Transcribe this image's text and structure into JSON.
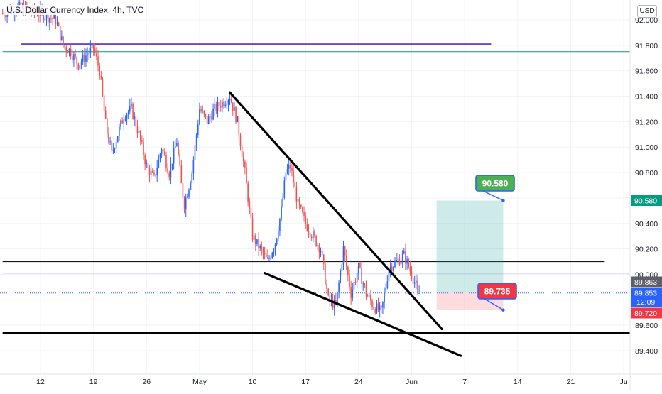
{
  "header": {
    "title": "U.S. Dollar Currency Index, 4h, TVC",
    "currency": "USD"
  },
  "chart_data": {
    "type": "candlestick",
    "title": "U.S. Dollar Currency Index, 4h, TVC",
    "ylim": [
      89.3,
      92.1
    ],
    "y_ticks": [
      "92.000",
      "91.800",
      "91.600",
      "91.400",
      "91.200",
      "91.000",
      "90.800",
      "90.600",
      "90.400",
      "90.200",
      "90.000",
      "89.800",
      "89.600",
      "89.400"
    ],
    "x_ticks": [
      {
        "label": "12",
        "x": 5
      },
      {
        "label": "19",
        "x": 12
      },
      {
        "label": "26",
        "x": 19
      },
      {
        "label": "May",
        "x": 26
      },
      {
        "label": "10",
        "x": 33
      },
      {
        "label": "17",
        "x": 40
      },
      {
        "label": "24",
        "x": 47
      },
      {
        "label": "Jun",
        "x": 54
      },
      {
        "label": "7",
        "x": 61
      },
      {
        "label": "14",
        "x": 68
      },
      {
        "label": "21",
        "x": 75
      },
      {
        "label": "Ju",
        "x": 82
      }
    ],
    "xlim": [
      0,
      85.5
    ],
    "candle_x_step": 0.2,
    "candle_anchors": [
      [
        0,
        92.05
      ],
      [
        2,
        92.1
      ],
      [
        5,
        92.05
      ],
      [
        7,
        92.0
      ],
      [
        8,
        91.8
      ],
      [
        9,
        91.75
      ],
      [
        10,
        91.65
      ],
      [
        11,
        91.72
      ],
      [
        12,
        91.78
      ],
      [
        12.8,
        91.6
      ],
      [
        13.6,
        91.18
      ],
      [
        14.4,
        90.95
      ],
      [
        15.2,
        91.1
      ],
      [
        16,
        91.25
      ],
      [
        17,
        91.3
      ],
      [
        18,
        91.1
      ],
      [
        19,
        90.85
      ],
      [
        20,
        90.75
      ],
      [
        21,
        91.0
      ],
      [
        22,
        90.8
      ],
      [
        23,
        91.05
      ],
      [
        23.6,
        90.7
      ],
      [
        24,
        90.55
      ],
      [
        25,
        90.8
      ],
      [
        26,
        91.3
      ],
      [
        27,
        91.2
      ],
      [
        28,
        91.3
      ],
      [
        29,
        91.35
      ],
      [
        30,
        91.4
      ],
      [
        31,
        91.2
      ],
      [
        32,
        90.8
      ],
      [
        33,
        90.3
      ],
      [
        34,
        90.2
      ],
      [
        35,
        90.1
      ],
      [
        36,
        90.25
      ],
      [
        36.8,
        90.5
      ],
      [
        37.4,
        90.8
      ],
      [
        38,
        90.85
      ],
      [
        39,
        90.55
      ],
      [
        40,
        90.4
      ],
      [
        41,
        90.3
      ],
      [
        42,
        90.2
      ],
      [
        43,
        89.8
      ],
      [
        44,
        89.75
      ],
      [
        45,
        90.2
      ],
      [
        46,
        89.85
      ],
      [
        47,
        90.05
      ],
      [
        48,
        89.85
      ],
      [
        49,
        89.75
      ],
      [
        50,
        89.7
      ],
      [
        51,
        90.05
      ],
      [
        52,
        90.1
      ],
      [
        53,
        90.15
      ],
      [
        54,
        90.0
      ],
      [
        55,
        89.85
      ]
    ],
    "last_price": 89.853,
    "countdown": "12:09",
    "price_labels": [
      {
        "value": 90.58,
        "text": "90.580",
        "color": "#089981"
      },
      {
        "value": 89.863,
        "text": "89.863",
        "color": "#5d606b"
      },
      {
        "value": 89.72,
        "text": "89.720",
        "color": "#f23645"
      }
    ],
    "callouts": [
      {
        "text": "90.580",
        "color": "#4caf50"
      },
      {
        "text": "89.735",
        "color": "#f23645"
      }
    ],
    "horizontal_lines": [
      {
        "y": 91.81,
        "x0": 2.4,
        "x1": 64.5,
        "color": "#5b2bb0",
        "width": 1.6
      },
      {
        "y": 91.75,
        "x0": 0,
        "x1": 85.5,
        "color": "#089981",
        "width": 1
      },
      {
        "y": 90.1,
        "x0": 0,
        "x1": 79.5,
        "color": "#131722",
        "width": 1.1
      },
      {
        "y": 90.01,
        "x0": 0,
        "x1": 82.8,
        "color": "#5b2bb0",
        "width": 0.9
      },
      {
        "y": 89.54,
        "x0": 0,
        "x1": 85.5,
        "color": "#000000",
        "width": 2.2
      }
    ],
    "trend_lines": [
      {
        "x0": 30,
        "y0": 91.43,
        "x1": 58,
        "y1": 89.57
      },
      {
        "x0": 34.6,
        "y0": 90.01,
        "x1": 60.5,
        "y1": 89.36
      }
    ],
    "position_box": {
      "x0": 57.3,
      "x1": 66.1,
      "entry": 89.863,
      "target": 90.58,
      "stop": 89.72,
      "profit_color": "#26a69a",
      "loss_color": "#f7525f"
    },
    "colors": {
      "up": "#2962ff",
      "down": "#ef5350",
      "grid": "#f0f3fa",
      "axis_text": "#131722",
      "last_price_line": "#2962ff"
    }
  }
}
